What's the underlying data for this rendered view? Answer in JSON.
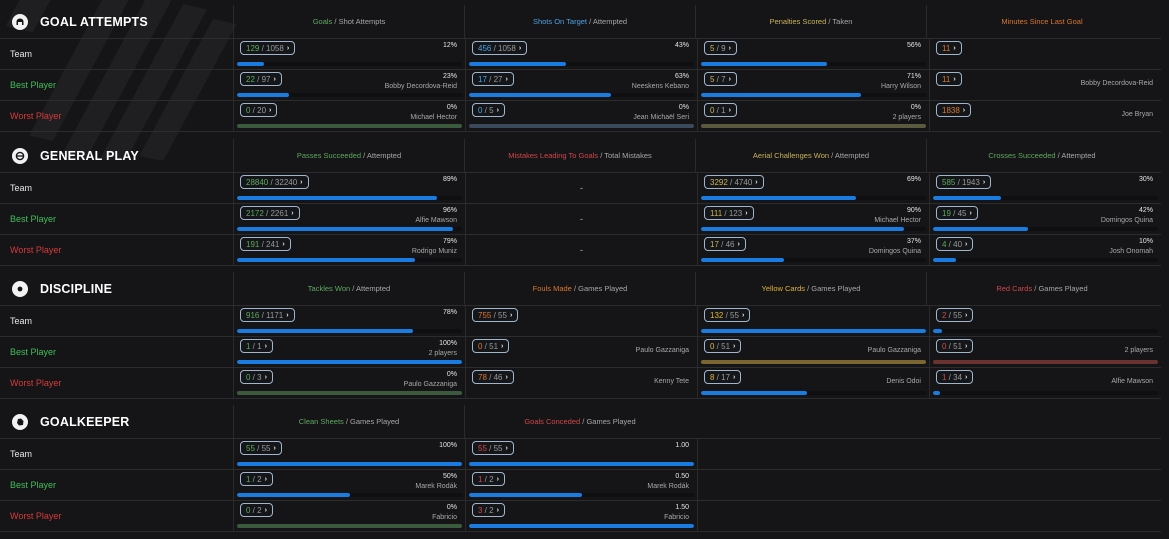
{
  "colors": {
    "bar_fill": "#1a7be0",
    "best": "#3fbf5a",
    "worst": "#d63c3c",
    "green": "#5daa5f",
    "blue": "#4aa3e6",
    "olive": "#c9b45a",
    "orange": "#d9772e",
    "yellow": "#e2b53a",
    "red": "#d0474a",
    "track_green": "#3b5a3e",
    "track_slate": "#3a4a5c",
    "track_olive": "#5b5a3c",
    "track_gold": "#7a6630",
    "track_red": "#6b3232"
  },
  "row_labels": [
    "Team",
    "Best Player",
    "Worst Player"
  ],
  "sections": [
    {
      "title": "GOAL ATTEMPTS",
      "icon": "goal-icon",
      "columns": [
        {
          "head_main": "Goals",
          "head_rest": " / Shot Attempts",
          "accent": "green",
          "rows": [
            {
              "num": "129",
              "den": "1058",
              "pct": "12%",
              "player": "",
              "fill": 0.12
            },
            {
              "num": "22",
              "den": "97",
              "pct": "23%",
              "player": "Bobby Decordova-Reid",
              "fill": 0.23
            },
            {
              "num": "0",
              "den": "20",
              "pct": "0%",
              "player": "Michael Hector",
              "fill": 0,
              "track": "track_green"
            }
          ]
        },
        {
          "head_main": "Shots On Target",
          "head_rest": " / Attempted",
          "accent": "blue",
          "rows": [
            {
              "num": "456",
              "den": "1058",
              "pct": "43%",
              "player": "",
              "fill": 0.43
            },
            {
              "num": "17",
              "den": "27",
              "pct": "63%",
              "player": "Neeskens Kebano",
              "fill": 0.63
            },
            {
              "num": "0",
              "den": "5",
              "pct": "0%",
              "player": "Jean Michaël Seri",
              "fill": 0,
              "track": "track_slate"
            }
          ]
        },
        {
          "head_main": "Penalties Scored",
          "head_rest": " / Taken",
          "accent": "olive",
          "rows": [
            {
              "num": "5",
              "den": "9",
              "pct": "56%",
              "player": "",
              "fill": 0.56
            },
            {
              "num": "5",
              "den": "7",
              "pct": "71%",
              "player": "Harry Wilson",
              "fill": 0.71
            },
            {
              "num": "0",
              "den": "1",
              "pct": "0%",
              "player": "2 players",
              "fill": 0,
              "track": "track_olive"
            }
          ]
        },
        {
          "head_main": "Minutes Since Last Goal",
          "head_rest": "",
          "accent": "orange",
          "rows": [
            {
              "num": "11",
              "den": null,
              "pct": "",
              "player": "",
              "fill": null
            },
            {
              "num": "11",
              "den": null,
              "pct": "",
              "player": "Bobby Decordova-Reid",
              "fill": null
            },
            {
              "num": "1838",
              "den": null,
              "pct": "",
              "player": "Joe Bryan",
              "fill": null
            }
          ]
        }
      ]
    },
    {
      "title": "GENERAL PLAY",
      "icon": "ball-icon",
      "columns": [
        {
          "head_main": "Passes Succeeded",
          "head_rest": " / Attempted",
          "accent": "green",
          "rows": [
            {
              "num": "28840",
              "den": "32240",
              "pct": "89%",
              "player": "",
              "fill": 0.89
            },
            {
              "num": "2172",
              "den": "2261",
              "pct": "96%",
              "player": "Alfie Mawson",
              "fill": 0.96
            },
            {
              "num": "191",
              "den": "241",
              "pct": "79%",
              "player": "Rodrigo Muniz",
              "fill": 0.79
            }
          ]
        },
        {
          "head_main": "Mistakes Leading To Goals",
          "head_rest": " / Total Mistakes",
          "accent": "red",
          "rows": [
            {
              "dash": "-"
            },
            {
              "dash": "-"
            },
            {
              "dash": "-"
            }
          ]
        },
        {
          "head_main": "Aerial Challenges Won",
          "head_rest": " / Attempted",
          "accent": "olive",
          "rows": [
            {
              "num": "3292",
              "den": "4740",
              "pct": "69%",
              "player": "",
              "fill": 0.69
            },
            {
              "num": "111",
              "den": "123",
              "pct": "90%",
              "player": "Michael Hector",
              "fill": 0.9
            },
            {
              "num": "17",
              "den": "46",
              "pct": "37%",
              "player": "Domingos Quina",
              "fill": 0.37
            }
          ]
        },
        {
          "head_main": "Crosses Succeeded",
          "head_rest": " / Attempted",
          "accent": "green",
          "rows": [
            {
              "num": "585",
              "den": "1943",
              "pct": "30%",
              "player": "",
              "fill": 0.3
            },
            {
              "num": "19",
              "den": "45",
              "pct": "42%",
              "player": "Domingos Quina",
              "fill": 0.42
            },
            {
              "num": "4",
              "den": "40",
              "pct": "10%",
              "player": "Josh Onomah",
              "fill": 0.1
            }
          ]
        }
      ]
    },
    {
      "title": "DISCIPLINE",
      "icon": "whistle-icon",
      "columns": [
        {
          "head_main": "Tackles Won",
          "head_rest": " / Attempted",
          "accent": "green",
          "rows": [
            {
              "num": "916",
              "den": "1171",
              "pct": "78%",
              "player": "",
              "fill": 0.78
            },
            {
              "num": "1",
              "den": "1",
              "pct": "100%",
              "player": "2 players",
              "fill": 1.0
            },
            {
              "num": "0",
              "den": "3",
              "pct": "0%",
              "player": "Paulo Gazzaniga",
              "fill": 0,
              "track": "track_green"
            }
          ]
        },
        {
          "head_main": "Fouls Made",
          "head_rest": " / Games Played",
          "accent": "orange",
          "rows": [
            {
              "num": "755",
              "den": "55",
              "pct": "",
              "player": "",
              "fill": null
            },
            {
              "num": "0",
              "den": "51",
              "pct": "",
              "player": "Paulo Gazzaniga",
              "fill": null
            },
            {
              "num": "78",
              "den": "46",
              "pct": "",
              "player": "Kenny Tete",
              "fill": null
            }
          ]
        },
        {
          "head_main": "Yellow Cards",
          "head_rest": " / Games Played",
          "accent": "yellow",
          "rows": [
            {
              "num": "132",
              "den": "55",
              "pct": "",
              "player": "",
              "fill": 1.0
            },
            {
              "num": "0",
              "den": "51",
              "pct": "",
              "player": "Paulo Gazzaniga",
              "fill": 0,
              "track": "track_gold"
            },
            {
              "num": "8",
              "den": "17",
              "pct": "",
              "player": "Denis Odoi",
              "fill": 0.47
            }
          ]
        },
        {
          "head_main": "Red Cards",
          "head_rest": " / Games Played",
          "accent": "red",
          "rows": [
            {
              "num": "2",
              "den": "55",
              "pct": "",
              "player": "",
              "fill": 0.04
            },
            {
              "num": "0",
              "den": "51",
              "pct": "",
              "player": "2 players",
              "fill": 0,
              "track": "track_red"
            },
            {
              "num": "1",
              "den": "34",
              "pct": "",
              "player": "Alfie Mawson",
              "fill": 0.03
            }
          ]
        }
      ]
    },
    {
      "title": "GOALKEEPER",
      "icon": "glove-icon",
      "columns": [
        {
          "head_main": "Clean Sheets",
          "head_rest": " / Games Played",
          "accent": "green",
          "rows": [
            {
              "num": "55",
              "den": "55",
              "pct": "100%",
              "player": "",
              "fill": 1.0
            },
            {
              "num": "1",
              "den": "2",
              "pct": "50%",
              "player": "Marek Rodák",
              "fill": 0.5
            },
            {
              "num": "0",
              "den": "2",
              "pct": "0%",
              "player": "Fabricio",
              "fill": 0,
              "track": "track_green"
            }
          ]
        },
        {
          "head_main": "Goals Conceded",
          "head_rest": " / Games Played",
          "accent": "red",
          "rows": [
            {
              "num": "55",
              "den": "55",
              "pct": "1.00",
              "player": "",
              "fill": 1.0
            },
            {
              "num": "1",
              "den": "2",
              "pct": "0.50",
              "player": "Marek Rodák",
              "fill": 0.5
            },
            {
              "num": "3",
              "den": "2",
              "pct": "1.50",
              "player": "Fabricio",
              "fill": 1.0
            }
          ]
        }
      ]
    }
  ]
}
